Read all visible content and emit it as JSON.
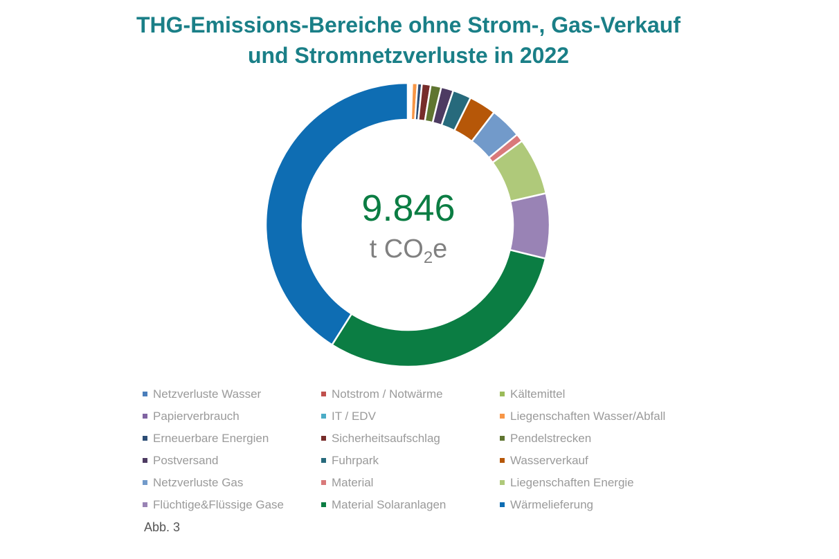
{
  "chart_data": {
    "type": "pie",
    "title_lines": [
      "THG-Emissions-Bereiche ohne Strom-, Gas-Verkauf",
      "und Stromnetzverluste in 2022"
    ],
    "center_value": "9.846",
    "center_unit": {
      "prefix": "t CO",
      "sub": "2",
      "suffix": "e"
    },
    "slices": [
      {
        "label": "Netzverluste Wasser",
        "value": 0.1,
        "color": "#4a7ebb"
      },
      {
        "label": "Notstrom / Notwärme",
        "value": 0.1,
        "color": "#c0504d"
      },
      {
        "label": "Kältemittel",
        "value": 0.1,
        "color": "#9bbb59"
      },
      {
        "label": "Papierverbrauch",
        "value": 0.1,
        "color": "#8064a2"
      },
      {
        "label": "IT / EDV",
        "value": 0.1,
        "color": "#4bacc6"
      },
      {
        "label": "Liegenschaften Wasser/Abfall",
        "value": 0.6,
        "color": "#f79646"
      },
      {
        "label": "Erneuerbare Energien",
        "value": 0.5,
        "color": "#2c4d75"
      },
      {
        "label": "Sicherheitsaufschlag",
        "value": 1.0,
        "color": "#772c2a"
      },
      {
        "label": "Pendelstrecken",
        "value": 1.2,
        "color": "#5f7530"
      },
      {
        "label": "Postversand",
        "value": 1.4,
        "color": "#4d3b62"
      },
      {
        "label": "Fuhrpark",
        "value": 2.1,
        "color": "#276a7c"
      },
      {
        "label": "Wasserverkauf",
        "value": 3.1,
        "color": "#b65708"
      },
      {
        "label": "Netzverluste Gas",
        "value": 3.6,
        "color": "#729aca"
      },
      {
        "label": "Material",
        "value": 0.9,
        "color": "#d9797a"
      },
      {
        "label": "Liegenschaften Energie",
        "value": 6.5,
        "color": "#afc97a"
      },
      {
        "label": "Flüchtige&Flüssige Gase",
        "value": 7.4,
        "color": "#9983b5"
      },
      {
        "label": "Material Solaranlagen",
        "value": 30.1,
        "color": "#0b7d43"
      },
      {
        "label": "Wärmelieferung",
        "value": 41.0,
        "color": "#0e6db3"
      }
    ],
    "legend_position": "bottom"
  },
  "caption": "Abb. 3"
}
